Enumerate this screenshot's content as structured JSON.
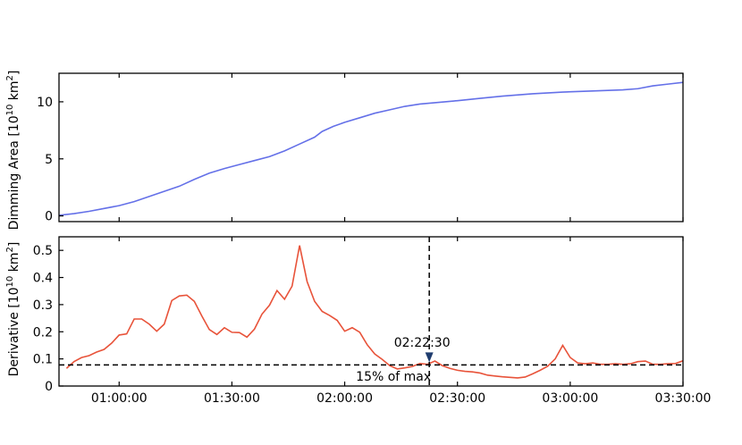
{
  "chart_data": [
    {
      "type": "line",
      "title": "",
      "xlabel": "",
      "ylabel_main": "Dimming Area [10",
      "ylabel_exp": "10",
      "ylabel_unit": " km",
      "ylabel_sq": "2",
      "ylabel_close": "]",
      "ylim": [
        -0.5,
        12.5
      ],
      "yticks": [
        0,
        5,
        10
      ],
      "ytick_labels": [
        "0",
        "5",
        "10"
      ],
      "xlim_minutes": [
        44,
        210
      ],
      "xticks_minutes": [
        60,
        90,
        120,
        150,
        180,
        210
      ],
      "grid": false,
      "series": [
        {
          "color": "#6470e8",
          "points": [
            [
              44,
              0.05
            ],
            [
              48,
              0.2
            ],
            [
              52,
              0.4
            ],
            [
              56,
              0.65
            ],
            [
              60,
              0.9
            ],
            [
              64,
              1.25
            ],
            [
              68,
              1.7
            ],
            [
              72,
              2.15
            ],
            [
              76,
              2.6
            ],
            [
              80,
              3.2
            ],
            [
              84,
              3.75
            ],
            [
              88,
              4.15
            ],
            [
              92,
              4.5
            ],
            [
              96,
              4.85
            ],
            [
              100,
              5.2
            ],
            [
              104,
              5.7
            ],
            [
              108,
              6.3
            ],
            [
              112,
              6.9
            ],
            [
              114,
              7.4
            ],
            [
              117,
              7.85
            ],
            [
              120,
              8.2
            ],
            [
              124,
              8.6
            ],
            [
              128,
              9.0
            ],
            [
              132,
              9.3
            ],
            [
              136,
              9.6
            ],
            [
              140,
              9.8
            ],
            [
              145,
              9.95
            ],
            [
              150,
              10.1
            ],
            [
              156,
              10.3
            ],
            [
              162,
              10.5
            ],
            [
              170,
              10.7
            ],
            [
              178,
              10.85
            ],
            [
              186,
              10.95
            ],
            [
              194,
              11.05
            ],
            [
              198,
              11.15
            ],
            [
              202,
              11.4
            ],
            [
              206,
              11.55
            ],
            [
              210,
              11.7
            ]
          ]
        }
      ]
    },
    {
      "type": "line",
      "title": "",
      "xlabel": "",
      "ylabel_main": "Derivative [10",
      "ylabel_exp": "10",
      "ylabel_unit": " km",
      "ylabel_sq": "2",
      "ylabel_close": "]",
      "ylim": [
        0,
        0.55
      ],
      "yticks": [
        0,
        0.1,
        0.2,
        0.3,
        0.4,
        0.5
      ],
      "ytick_labels": [
        "0",
        "0.1",
        "0.2",
        "0.3",
        "0.4",
        "0.5"
      ],
      "xlim_minutes": [
        44,
        210
      ],
      "xticks_minutes": [
        60,
        90,
        120,
        150,
        180,
        210
      ],
      "xtick_labels": [
        "01:00:00",
        "01:30:00",
        "02:00:00",
        "02:30:00",
        "03:00:00",
        "03:30:00"
      ],
      "grid": false,
      "series": [
        {
          "color": "#e8533a",
          "points": [
            [
              46,
              0.065
            ],
            [
              48,
              0.09
            ],
            [
              50,
              0.105
            ],
            [
              52,
              0.112
            ],
            [
              54,
              0.125
            ],
            [
              56,
              0.135
            ],
            [
              58,
              0.158
            ],
            [
              60,
              0.188
            ],
            [
              62,
              0.192
            ],
            [
              64,
              0.247
            ],
            [
              66,
              0.247
            ],
            [
              68,
              0.228
            ],
            [
              70,
              0.202
            ],
            [
              72,
              0.228
            ],
            [
              74,
              0.315
            ],
            [
              76,
              0.332
            ],
            [
              78,
              0.335
            ],
            [
              80,
              0.312
            ],
            [
              82,
              0.258
            ],
            [
              84,
              0.208
            ],
            [
              86,
              0.19
            ],
            [
              88,
              0.215
            ],
            [
              90,
              0.198
            ],
            [
              92,
              0.197
            ],
            [
              94,
              0.18
            ],
            [
              96,
              0.21
            ],
            [
              98,
              0.265
            ],
            [
              100,
              0.298
            ],
            [
              102,
              0.352
            ],
            [
              104,
              0.32
            ],
            [
              106,
              0.368
            ],
            [
              108,
              0.518
            ],
            [
              110,
              0.385
            ],
            [
              112,
              0.312
            ],
            [
              114,
              0.275
            ],
            [
              116,
              0.26
            ],
            [
              118,
              0.242
            ],
            [
              120,
              0.202
            ],
            [
              122,
              0.215
            ],
            [
              124,
              0.198
            ],
            [
              126,
              0.152
            ],
            [
              128,
              0.118
            ],
            [
              130,
              0.098
            ],
            [
              132,
              0.075
            ],
            [
              134,
              0.063
            ],
            [
              136,
              0.067
            ],
            [
              138,
              0.072
            ],
            [
              140,
              0.083
            ],
            [
              142,
              0.08
            ],
            [
              144,
              0.092
            ],
            [
              146,
              0.075
            ],
            [
              148,
              0.065
            ],
            [
              150,
              0.058
            ],
            [
              152,
              0.054
            ],
            [
              154,
              0.052
            ],
            [
              156,
              0.048
            ],
            [
              158,
              0.04
            ],
            [
              160,
              0.037
            ],
            [
              162,
              0.034
            ],
            [
              164,
              0.032
            ],
            [
              166,
              0.03
            ],
            [
              168,
              0.033
            ],
            [
              170,
              0.045
            ],
            [
              172,
              0.058
            ],
            [
              174,
              0.073
            ],
            [
              176,
              0.1
            ],
            [
              178,
              0.15
            ],
            [
              180,
              0.105
            ],
            [
              182,
              0.085
            ],
            [
              184,
              0.082
            ],
            [
              186,
              0.085
            ],
            [
              188,
              0.08
            ],
            [
              190,
              0.08
            ],
            [
              192,
              0.082
            ],
            [
              194,
              0.08
            ],
            [
              196,
              0.082
            ],
            [
              198,
              0.09
            ],
            [
              200,
              0.092
            ],
            [
              202,
              0.08
            ],
            [
              204,
              0.08
            ],
            [
              206,
              0.082
            ],
            [
              208,
              0.083
            ],
            [
              210,
              0.093
            ]
          ]
        }
      ],
      "threshold": {
        "value": 0.078,
        "label": "15% of max"
      },
      "marker_time": {
        "x_minutes": 142.5,
        "label": "02:22:30"
      }
    }
  ]
}
